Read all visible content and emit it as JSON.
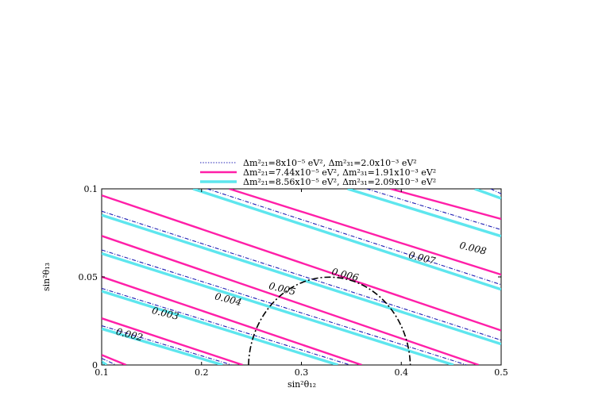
{
  "chart_data": {
    "type": "line",
    "xlabel": "sin²θ₁₂",
    "ylabel": "sin²θ₁₃",
    "xlim": [
      0.1,
      0.5
    ],
    "ylim": [
      0,
      0.1
    ],
    "x_ticks": [
      "0.1",
      "0.2",
      "0.3",
      "0.4",
      "0.5"
    ],
    "y_ticks": [
      "0",
      "0.05",
      "0.1"
    ],
    "legend_position": "top",
    "series": [
      {
        "name": "Δm²₂₁=8x10⁻⁵ eV², Δm²₃₁=2.0x10⁻³ eV²",
        "color": "#1f1fb4",
        "style": "dash-dot",
        "contours": [
          {
            "level": 0.001,
            "points": [
              [
                0.1,
                0.0038
              ],
              [
                0.1145,
                0.0
              ]
            ]
          },
          {
            "level": 0.002,
            "points": [
              [
                0.1,
                0.0223
              ],
              [
                0.2305,
                0.0
              ]
            ]
          },
          {
            "level": 0.003,
            "points": [
              [
                0.1,
                0.0435
              ],
              [
                0.3488,
                0.0
              ]
            ]
          },
          {
            "level": 0.004,
            "points": [
              [
                0.1,
                0.0653
              ],
              [
                0.4655,
                0.0
              ]
            ]
          },
          {
            "level": 0.005,
            "points": [
              [
                0.1,
                0.0873
              ],
              [
                0.5,
                0.0141
              ]
            ]
          },
          {
            "level": 0.006,
            "points": [
              [
                0.2058,
                0.1
              ],
              [
                0.5,
                0.0456
              ]
            ]
          },
          {
            "level": 0.007,
            "points": [
              [
                0.3653,
                0.1
              ],
              [
                0.5,
                0.0768
              ]
            ]
          },
          {
            "level": 0.008,
            "points": [
              [
                0.4895,
                0.1
              ],
              [
                0.5,
                0.0972
              ]
            ]
          }
        ]
      },
      {
        "name": "Δm²₂₁=7.44x10⁻⁵ eV², Δm²₃₁=1.91x10⁻³ eV²",
        "color": "#ff1fa8",
        "style": "solid",
        "contours": [
          {
            "level": 0.001,
            "points": [
              [
                0.1,
                0.0057
              ],
              [
                0.1245,
                0.0
              ]
            ]
          },
          {
            "level": 0.002,
            "points": [
              [
                0.1,
                0.0265
              ],
              [
                0.2413,
                0.0
              ]
            ]
          },
          {
            "level": 0.003,
            "points": [
              [
                0.1,
                0.0501
              ],
              [
                0.3605,
                0.0
              ]
            ]
          },
          {
            "level": 0.004,
            "points": [
              [
                0.1,
                0.0733
              ],
              [
                0.4775,
                0.0
              ]
            ]
          },
          {
            "level": 0.005,
            "points": [
              [
                0.1,
                0.0963
              ],
              [
                0.5,
                0.0196
              ]
            ]
          },
          {
            "level": 0.006,
            "points": [
              [
                0.2278,
                0.1
              ],
              [
                0.5,
                0.0513
              ]
            ]
          },
          {
            "level": 0.007,
            "points": [
              [
                0.3892,
                0.1
              ],
              [
                0.5,
                0.0829
              ]
            ]
          }
        ]
      },
      {
        "name": "Δm²₂₁=8.56x10⁻⁵ eV², Δm²₃₁=2.09x10⁻³ eV²",
        "color": "#5ee6ee",
        "style": "solid",
        "contours": [
          {
            "level": 0.001,
            "points": [
              [
                0.1,
                0.0019
              ],
              [
                0.105,
                0.0
              ]
            ]
          },
          {
            "level": 0.002,
            "points": [
              [
                0.1,
                0.0206
              ],
              [
                0.2211,
                0.0
              ]
            ]
          },
          {
            "level": 0.003,
            "points": [
              [
                0.1,
                0.0419
              ],
              [
                0.3366,
                0.0
              ]
            ]
          },
          {
            "level": 0.004,
            "points": [
              [
                0.1,
                0.0633
              ],
              [
                0.4523,
                0.0
              ]
            ]
          },
          {
            "level": 0.005,
            "points": [
              [
                0.1,
                0.0851
              ],
              [
                0.5,
                0.0119
              ]
            ]
          },
          {
            "level": 0.006,
            "points": [
              [
                0.1915,
                0.1
              ],
              [
                0.5,
                0.0429
              ]
            ]
          },
          {
            "level": 0.007,
            "points": [
              [
                0.3463,
                0.1
              ],
              [
                0.5,
                0.0731
              ]
            ]
          },
          {
            "level": 0.008,
            "points": [
              [
                0.4735,
                0.1
              ],
              [
                0.5,
                0.0946
              ]
            ]
          }
        ]
      }
    ],
    "contour_labels": [
      {
        "text": "0.002",
        "x": 0.127,
        "y": 0.0155
      },
      {
        "text": "0.003",
        "x": 0.163,
        "y": 0.0275
      },
      {
        "text": "0.004",
        "x": 0.226,
        "y": 0.0355
      },
      {
        "text": "0.005",
        "x": 0.28,
        "y": 0.0415
      },
      {
        "text": "0.006",
        "x": 0.343,
        "y": 0.0495
      },
      {
        "text": "0.007",
        "x": 0.42,
        "y": 0.059
      },
      {
        "text": "0.008",
        "x": 0.471,
        "y": 0.0645
      }
    ],
    "region": {
      "style": "dash-dot",
      "color": "#000000",
      "center": [
        0.328,
        0.0
      ],
      "radii": [
        0.081,
        0.0515
      ]
    }
  }
}
